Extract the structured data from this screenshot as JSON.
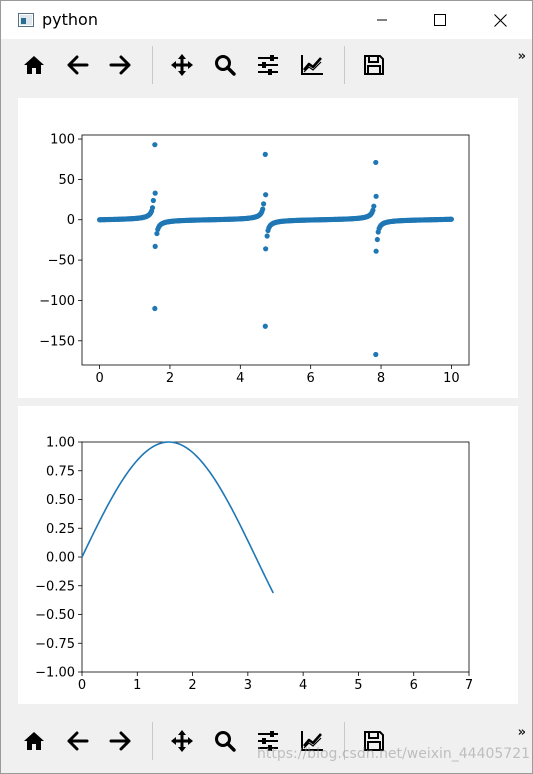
{
  "window": {
    "title": "python"
  },
  "titlebar": {
    "minimize_icon": "minimize-icon",
    "maximize_icon": "maximize-icon",
    "close_icon": "close-icon"
  },
  "toolbar": {
    "buttons": [
      {
        "name": "home",
        "icon": "home-icon"
      },
      {
        "name": "back",
        "icon": "arrow-left-icon"
      },
      {
        "name": "forward",
        "icon": "arrow-right-icon"
      },
      {
        "name": "pan",
        "icon": "move-icon"
      },
      {
        "name": "zoom",
        "icon": "search-icon"
      },
      {
        "name": "configure-subplots",
        "icon": "sliders-icon"
      },
      {
        "name": "edit-axis",
        "icon": "chart-line-icon"
      },
      {
        "name": "save",
        "icon": "save-icon"
      }
    ],
    "overflow": "»"
  },
  "colors": {
    "series": "#1f77b4",
    "window_bg": "#f0f0f0",
    "canvas_bg": "#ffffff"
  },
  "watermark": "https://blog.csdn.net/weixin_44405721",
  "chart_data": [
    {
      "type": "scatter",
      "title": "",
      "xlabel": "",
      "ylabel": "",
      "xlim": [
        -0.5,
        10.5
      ],
      "ylim": [
        -180,
        105
      ],
      "xticks": [
        0,
        2,
        4,
        6,
        8,
        10
      ],
      "yticks": [
        100,
        50,
        0,
        -50,
        -100,
        -150
      ],
      "series": [
        {
          "function": "tan(x)",
          "x_range": [
            0,
            10
          ],
          "points": 400
        }
      ],
      "outliers": [
        {
          "x": 1.57,
          "y": 93
        },
        {
          "x": 1.57,
          "y": -110
        },
        {
          "x": 1.58,
          "y": 33
        },
        {
          "x": 1.58,
          "y": -33
        },
        {
          "x": 4.71,
          "y": 81
        },
        {
          "x": 4.71,
          "y": -132
        },
        {
          "x": 4.72,
          "y": 31
        },
        {
          "x": 4.72,
          "y": -36
        },
        {
          "x": 7.85,
          "y": 71
        },
        {
          "x": 7.85,
          "y": -167
        },
        {
          "x": 7.86,
          "y": 29
        },
        {
          "x": 7.86,
          "y": -39
        }
      ],
      "grid": false,
      "marker_color": "#1f77b4"
    },
    {
      "type": "line",
      "title": "",
      "xlabel": "",
      "ylabel": "",
      "xlim": [
        0,
        7
      ],
      "ylim": [
        -1,
        1
      ],
      "xticks": [
        0,
        1,
        2,
        3,
        4,
        5,
        6,
        7
      ],
      "yticks": [
        "1.00",
        "0.75",
        "0.50",
        "0.25",
        "0.00",
        "-0.25",
        "-0.50",
        "-0.75",
        "-1.00"
      ],
      "series": [
        {
          "function": "sin(x)",
          "x_range": [
            0,
            3.46
          ]
        }
      ],
      "grid": false,
      "line_color": "#1f77b4"
    }
  ]
}
